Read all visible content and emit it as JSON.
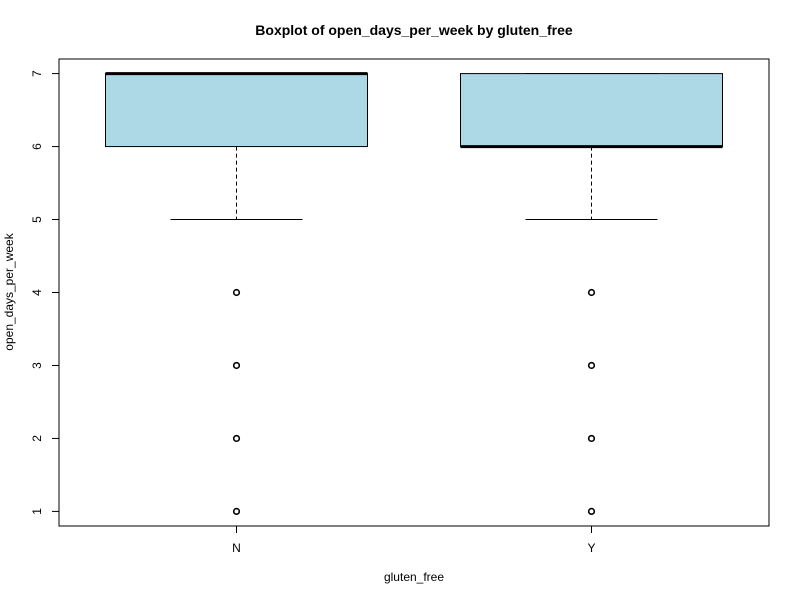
{
  "chart_data": {
    "type": "boxplot",
    "title": "Boxplot of open_days_per_week by gluten_free",
    "xlabel": "gluten_free",
    "ylabel": "open_days_per_week",
    "categories": [
      "N",
      "Y"
    ],
    "ylim": [
      0.8,
      7.2
    ],
    "yticks": [
      1,
      2,
      3,
      4,
      5,
      6,
      7
    ],
    "box_fill": "#add8e6",
    "grid": false,
    "legend": "none",
    "boxes": [
      {
        "category": "N",
        "whisker_low": 5,
        "q1": 6,
        "median": 7,
        "q3": 7,
        "whisker_high": 7,
        "outliers": [
          4,
          3,
          2,
          1
        ]
      },
      {
        "category": "Y",
        "whisker_low": 5,
        "q1": 6,
        "median": 6,
        "q3": 7,
        "whisker_high": 7,
        "outliers": [
          4,
          3,
          2,
          1
        ]
      }
    ]
  }
}
